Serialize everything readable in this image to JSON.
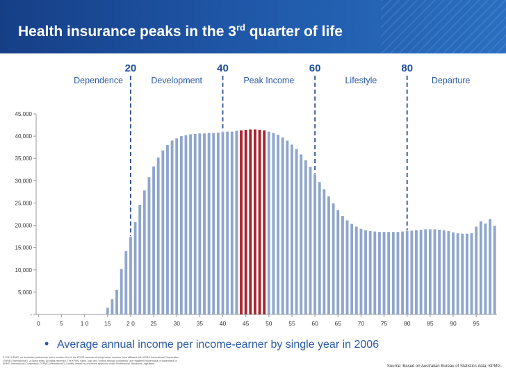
{
  "slide": {
    "title_main": "Health insurance peaks in the 3",
    "title_sup": "rd",
    "title_tail": " quarter of life",
    "bullet": "Average annual income per income-earner by single year in 2006",
    "copyright": "© 2011 KPMG, an Australian partnership and a member firm of the KPMG network of independent member firms affiliated with KPMG International Cooperative (\"KPMG International\"), a Swiss entity. All rights reserved. The KPMG name, logo and \"cutting through complexity\" are registered trademarks or trademarks of KPMG International Cooperative (\"KPMG International\"). Liability limited by a scheme approved under Professional Standards Legislation.",
    "source": "Source: Based on Australian Bureau of Statistics data; KPMG."
  },
  "colors": {
    "header": "#1d4f9b",
    "bar": "#8fa6cc",
    "bar_highlight": "#a8232e",
    "stage_label": "#2a5aa7",
    "age_marker": "#1d4f9b",
    "divider": "#2a4f92"
  },
  "chart_data": {
    "type": "bar",
    "title": "",
    "xlabel": "",
    "ylabel": "",
    "ylim": [
      0,
      45000
    ],
    "y_ticks": [
      "-",
      "5,000",
      "10,000",
      "15,000",
      "20,000",
      "25,000",
      "30,000",
      "35,000",
      "40,000",
      "45,000"
    ],
    "x_ticks": [
      "0",
      "5",
      "1 0",
      "15",
      "2 0",
      "25",
      "30",
      "35",
      "40",
      "45",
      "50",
      "55",
      "60",
      "65",
      "70",
      "75",
      "80",
      "85",
      "90",
      "95"
    ],
    "categories": [
      0,
      1,
      2,
      3,
      4,
      5,
      6,
      7,
      8,
      9,
      10,
      11,
      12,
      13,
      14,
      15,
      16,
      17,
      18,
      19,
      20,
      21,
      22,
      23,
      24,
      25,
      26,
      27,
      28,
      29,
      30,
      31,
      32,
      33,
      34,
      35,
      36,
      37,
      38,
      39,
      40,
      41,
      42,
      43,
      44,
      45,
      46,
      47,
      48,
      49,
      50,
      51,
      52,
      53,
      54,
      55,
      56,
      57,
      58,
      59,
      60,
      61,
      62,
      63,
      64,
      65,
      66,
      67,
      68,
      69,
      70,
      71,
      72,
      73,
      74,
      75,
      76,
      77,
      78,
      79,
      80,
      81,
      82,
      83,
      84,
      85,
      86,
      87,
      88,
      89,
      90,
      91,
      92,
      93,
      94,
      95,
      96,
      97,
      98,
      99
    ],
    "values": [
      0,
      0,
      0,
      0,
      0,
      0,
      0,
      0,
      0,
      0,
      0,
      0,
      0,
      0,
      0,
      1500,
      3400,
      5500,
      10200,
      14200,
      17400,
      20700,
      24600,
      27800,
      30800,
      33200,
      35200,
      36800,
      38000,
      39000,
      39500,
      40000,
      40200,
      40400,
      40500,
      40600,
      40600,
      40700,
      40700,
      40800,
      40900,
      41000,
      41000,
      41200,
      41300,
      41400,
      41500,
      41500,
      41400,
      41300,
      41000,
      40700,
      40300,
      39700,
      39000,
      38100,
      37100,
      35900,
      34600,
      33100,
      31400,
      29700,
      28100,
      26500,
      24900,
      23400,
      22100,
      21100,
      20300,
      19700,
      19200,
      18900,
      18700,
      18600,
      18500,
      18500,
      18500,
      18500,
      18500,
      18600,
      18700,
      18800,
      18900,
      19000,
      19100,
      19100,
      19100,
      19000,
      18900,
      18700,
      18400,
      18200,
      18100,
      18100,
      18200,
      19700,
      20900,
      20400,
      21400,
      19900
    ],
    "highlight_range": [
      44,
      49
    ],
    "age_markers": [
      "20",
      "40",
      "60",
      "80"
    ],
    "stages": [
      "Dependence",
      "Development",
      "Peak Income",
      "Lifestyle",
      "Departure"
    ]
  }
}
